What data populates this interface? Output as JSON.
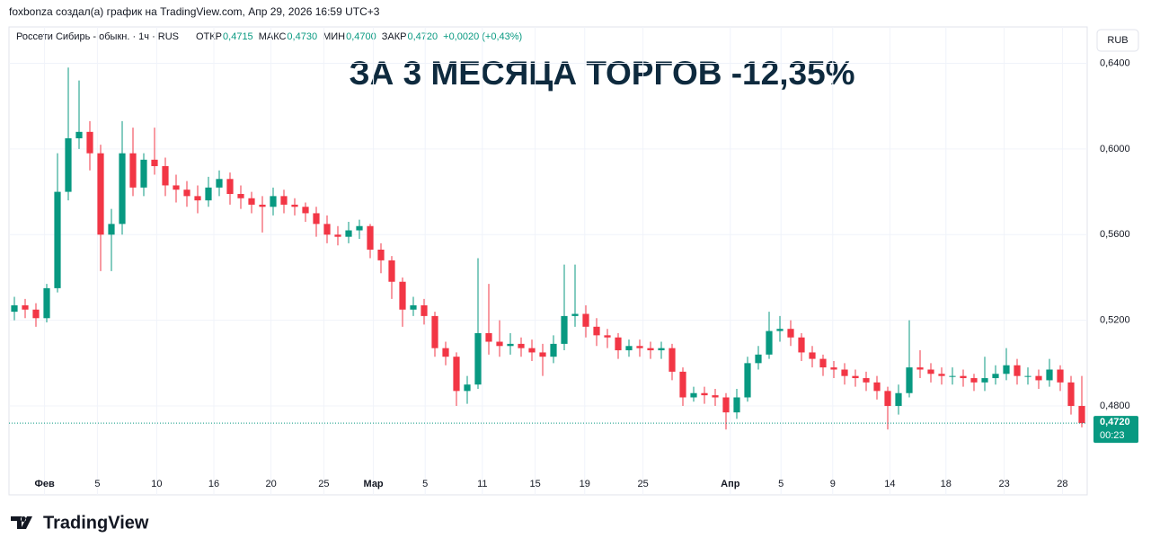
{
  "header": {
    "author_line": "foxbonza создал(а) график на TradingView.com, Апр 29, 2026 16:59 UTC+3",
    "symbol": "Россети Сибирь - обыкн. · 1ч · RUS",
    "ohlc": [
      {
        "label": "ОТКР",
        "value": "0,4715"
      },
      {
        "label": "МАКС",
        "value": "0,4730"
      },
      {
        "label": "МИН",
        "value": "0,4700"
      },
      {
        "label": "ЗАКР",
        "value": "0,4720"
      }
    ],
    "change": "+0,0020 (+0,43%)"
  },
  "chart_data": {
    "type": "candlestick",
    "title": "ЗА 3 МЕСЯЦА ТОРГОВ -12,35%",
    "currency": "RUB",
    "x": [
      0,
      1,
      2,
      3,
      4,
      5,
      6,
      7,
      8,
      9,
      10,
      11,
      12,
      13,
      14,
      15,
      16,
      17,
      18,
      19,
      20,
      21,
      22,
      23,
      24,
      25,
      26,
      27,
      28,
      29,
      30,
      31,
      32,
      33,
      34,
      35,
      36,
      37,
      38,
      39,
      40,
      41,
      42,
      43,
      44,
      45,
      46,
      47,
      48,
      49,
      50,
      51,
      52,
      53,
      54,
      55,
      56,
      57,
      58,
      59,
      60,
      61,
      62,
      63,
      64,
      65,
      66,
      67,
      68,
      69,
      70,
      71,
      72,
      73,
      74,
      75,
      76,
      77,
      78,
      79,
      80,
      81,
      82,
      83,
      84,
      85,
      86,
      87,
      88,
      89,
      90,
      91,
      92,
      93,
      94,
      95,
      96,
      97,
      98,
      99
    ],
    "open": [
      0.524,
      0.527,
      0.525,
      0.521,
      0.535,
      0.58,
      0.605,
      0.608,
      0.598,
      0.56,
      0.565,
      0.598,
      0.582,
      0.595,
      0.592,
      0.583,
      0.581,
      0.578,
      0.576,
      0.582,
      0.586,
      0.579,
      0.577,
      0.574,
      0.573,
      0.578,
      0.574,
      0.573,
      0.57,
      0.565,
      0.56,
      0.559,
      0.562,
      0.564,
      0.553,
      0.548,
      0.538,
      0.525,
      0.527,
      0.522,
      0.507,
      0.503,
      0.487,
      0.49,
      0.514,
      0.51,
      0.508,
      0.509,
      0.507,
      0.505,
      0.503,
      0.509,
      0.522,
      0.523,
      0.517,
      0.513,
      0.512,
      0.506,
      0.508,
      0.507,
      0.506,
      0.507,
      0.496,
      0.484,
      0.486,
      0.485,
      0.484,
      0.477,
      0.484,
      0.5,
      0.504,
      0.515,
      0.516,
      0.512,
      0.505,
      0.502,
      0.498,
      0.497,
      0.494,
      0.493,
      0.491,
      0.487,
      0.48,
      0.486,
      0.498,
      0.497,
      0.495,
      0.494,
      0.494,
      0.493,
      0.491,
      0.493,
      0.495,
      0.499,
      0.494,
      0.494,
      0.492,
      0.497,
      0.491,
      0.48
    ],
    "high": [
      0.531,
      0.53,
      0.528,
      0.537,
      0.598,
      0.638,
      0.632,
      0.613,
      0.602,
      0.572,
      0.613,
      0.61,
      0.598,
      0.61,
      0.596,
      0.588,
      0.585,
      0.583,
      0.587,
      0.59,
      0.589,
      0.583,
      0.58,
      0.578,
      0.582,
      0.581,
      0.577,
      0.575,
      0.573,
      0.569,
      0.564,
      0.566,
      0.567,
      0.565,
      0.556,
      0.55,
      0.54,
      0.531,
      0.53,
      0.524,
      0.51,
      0.505,
      0.494,
      0.549,
      0.537,
      0.52,
      0.514,
      0.512,
      0.511,
      0.509,
      0.513,
      0.546,
      0.546,
      0.527,
      0.521,
      0.516,
      0.514,
      0.511,
      0.511,
      0.51,
      0.51,
      0.509,
      0.498,
      0.489,
      0.489,
      0.488,
      0.486,
      0.488,
      0.503,
      0.508,
      0.524,
      0.522,
      0.52,
      0.514,
      0.508,
      0.504,
      0.501,
      0.5,
      0.497,
      0.496,
      0.494,
      0.489,
      0.49,
      0.52,
      0.506,
      0.5,
      0.498,
      0.498,
      0.497,
      0.495,
      0.503,
      0.499,
      0.507,
      0.502,
      0.498,
      0.497,
      0.502,
      0.499,
      0.494,
      0.494
    ],
    "low": [
      0.52,
      0.521,
      0.517,
      0.519,
      0.533,
      0.576,
      0.6,
      0.59,
      0.543,
      0.543,
      0.56,
      0.578,
      0.578,
      0.588,
      0.578,
      0.575,
      0.573,
      0.57,
      0.573,
      0.578,
      0.574,
      0.572,
      0.57,
      0.561,
      0.569,
      0.57,
      0.569,
      0.566,
      0.559,
      0.556,
      0.555,
      0.556,
      0.558,
      0.549,
      0.542,
      0.53,
      0.517,
      0.522,
      0.518,
      0.503,
      0.499,
      0.48,
      0.481,
      0.488,
      0.504,
      0.503,
      0.504,
      0.503,
      0.501,
      0.494,
      0.5,
      0.506,
      0.517,
      0.512,
      0.508,
      0.507,
      0.502,
      0.503,
      0.503,
      0.502,
      0.502,
      0.492,
      0.48,
      0.482,
      0.481,
      0.48,
      0.469,
      0.474,
      0.482,
      0.497,
      0.502,
      0.51,
      0.508,
      0.501,
      0.498,
      0.494,
      0.493,
      0.49,
      0.489,
      0.487,
      0.483,
      0.469,
      0.476,
      0.484,
      0.493,
      0.491,
      0.49,
      0.49,
      0.489,
      0.487,
      0.487,
      0.49,
      0.492,
      0.49,
      0.49,
      0.488,
      0.489,
      0.487,
      0.476,
      0.47
    ],
    "close": [
      0.527,
      0.525,
      0.521,
      0.535,
      0.58,
      0.605,
      0.608,
      0.598,
      0.56,
      0.565,
      0.598,
      0.582,
      0.595,
      0.592,
      0.583,
      0.581,
      0.578,
      0.576,
      0.582,
      0.586,
      0.579,
      0.577,
      0.574,
      0.573,
      0.578,
      0.574,
      0.573,
      0.57,
      0.565,
      0.56,
      0.559,
      0.562,
      0.564,
      0.553,
      0.548,
      0.538,
      0.525,
      0.527,
      0.522,
      0.507,
      0.503,
      0.487,
      0.49,
      0.514,
      0.51,
      0.508,
      0.509,
      0.507,
      0.505,
      0.503,
      0.509,
      0.522,
      0.523,
      0.517,
      0.513,
      0.512,
      0.506,
      0.508,
      0.507,
      0.506,
      0.507,
      0.496,
      0.484,
      0.486,
      0.485,
      0.484,
      0.477,
      0.484,
      0.5,
      0.504,
      0.515,
      0.516,
      0.512,
      0.505,
      0.502,
      0.498,
      0.497,
      0.494,
      0.493,
      0.491,
      0.487,
      0.48,
      0.486,
      0.498,
      0.497,
      0.495,
      0.494,
      0.494,
      0.493,
      0.491,
      0.493,
      0.495,
      0.499,
      0.494,
      0.494,
      0.492,
      0.497,
      0.491,
      0.48,
      0.472
    ],
    "up_color": "#089981",
    "down_color": "#f23645",
    "xlim": [
      -0.5,
      99.5
    ],
    "xticks": [
      {
        "value": 2.8,
        "label": "Фев"
      },
      {
        "value": 7.7,
        "label": "5"
      },
      {
        "value": 13.2,
        "label": "10"
      },
      {
        "value": 18.5,
        "label": "16"
      },
      {
        "value": 23.8,
        "label": "20"
      },
      {
        "value": 28.7,
        "label": "25"
      },
      {
        "value": 33.3,
        "label": "Мар"
      },
      {
        "value": 38.1,
        "label": "5"
      },
      {
        "value": 43.4,
        "label": "11"
      },
      {
        "value": 48.3,
        "label": "15"
      },
      {
        "value": 52.9,
        "label": "19"
      },
      {
        "value": 58.3,
        "label": "25"
      },
      {
        "value": 66.4,
        "label": "Апр"
      },
      {
        "value": 71.1,
        "label": "5"
      },
      {
        "value": 75.9,
        "label": "9"
      },
      {
        "value": 81.2,
        "label": "14"
      },
      {
        "value": 86.4,
        "label": "18"
      },
      {
        "value": 91.8,
        "label": "23"
      },
      {
        "value": 97.2,
        "label": "28"
      }
    ],
    "ylim": [
      0.4385,
      0.657
    ],
    "yticks": [
      {
        "value": 0.48,
        "label": "0,4800"
      },
      {
        "value": 0.52,
        "label": "0,5200"
      },
      {
        "value": 0.56,
        "label": "0,5600"
      },
      {
        "value": 0.6,
        "label": "0,6000"
      },
      {
        "value": 0.64,
        "label": "0,6400"
      }
    ],
    "grid": true,
    "last_price": {
      "value": 0.472,
      "label": "0,4720"
    },
    "countdown": "00:23"
  },
  "footer": {
    "brand": "TradingView"
  }
}
